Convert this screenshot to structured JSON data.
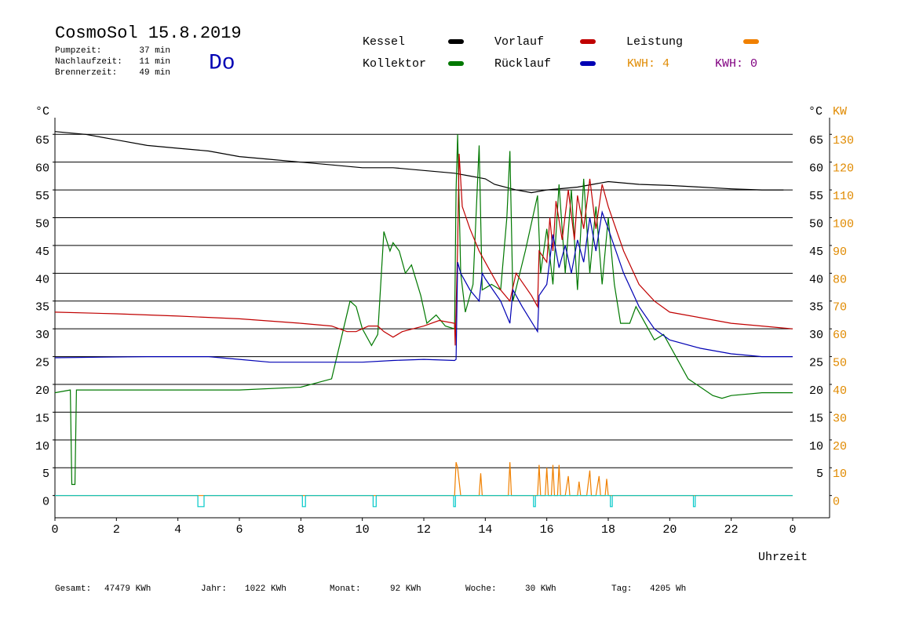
{
  "chart_data": {
    "type": "line",
    "title": "CosmoSol 15.8.2019",
    "weekday": "Do",
    "info": [
      {
        "label": "Pumpzeit:",
        "value": "37 min"
      },
      {
        "label": "Nachlaufzeit:",
        "value": "11 min"
      },
      {
        "label": "Brennerzeit:",
        "value": "49 min"
      }
    ],
    "energy_labels": [
      {
        "text": "KWH: 4",
        "color": "#e08a00"
      },
      {
        "text": "KWH: 0",
        "color": "#800080"
      }
    ],
    "y_label": "°C",
    "y_right_label": "°C",
    "y2_label": "KW",
    "x_label": "Uhrzeit",
    "xlim": [
      0,
      25.2
    ],
    "xticks": [
      0,
      2,
      4,
      6,
      8,
      10,
      12,
      14,
      16,
      18,
      20,
      22,
      {
        "value": 24,
        "label": "0"
      }
    ],
    "ylim": [
      -4,
      68
    ],
    "yticks": [
      0,
      5,
      10,
      15,
      20,
      25,
      30,
      35,
      40,
      45,
      50,
      55,
      60,
      65
    ],
    "yticks_right": [
      5,
      10,
      15,
      20,
      25,
      30,
      35,
      40,
      45,
      50,
      55,
      60,
      65
    ],
    "y2lim": [
      -8,
      136
    ],
    "y2ticks": [
      0,
      10,
      20,
      30,
      40,
      50,
      60,
      70,
      80,
      90,
      100,
      110,
      120,
      130
    ],
    "grid": true,
    "series": [
      {
        "name": "Kessel",
        "color": "#000000",
        "x": [
          0,
          1,
          2,
          3,
          4,
          5,
          6,
          7,
          8,
          9,
          10,
          11,
          12,
          13,
          13.5,
          14,
          14.3,
          15,
          15.5,
          16,
          17,
          17.5,
          18,
          19,
          20,
          21,
          22,
          23,
          23.7
        ],
        "values": [
          65.5,
          65,
          64,
          63,
          62.5,
          62,
          61,
          60.5,
          60,
          59.5,
          59,
          59,
          58.5,
          58,
          57.5,
          57,
          56,
          55,
          54.5,
          55,
          55.5,
          56,
          56.5,
          56,
          55.8,
          55.5,
          55.2,
          55,
          55
        ]
      },
      {
        "name": "Kollektor",
        "color": "#007800",
        "x": [
          0,
          0.5,
          0.55,
          0.65,
          0.7,
          2,
          4,
          6,
          8,
          9,
          9.3,
          9.6,
          9.8,
          10,
          10.3,
          10.5,
          10.7,
          10.9,
          11,
          11.2,
          11.4,
          11.6,
          11.9,
          12.1,
          12.4,
          12.7,
          13,
          13.05,
          13.1,
          13.2,
          13.35,
          13.6,
          13.8,
          13.9,
          14.2,
          14.5,
          14.7,
          14.8,
          14.9,
          15.3,
          15.5,
          15.7,
          15.8,
          16,
          16.2,
          16.4,
          16.6,
          16.8,
          17,
          17.2,
          17.4,
          17.6,
          17.8,
          18,
          18.2,
          18.4,
          18.7,
          18.9,
          19.2,
          19.5,
          19.8,
          20.2,
          20.6,
          21,
          21.4,
          21.7,
          22,
          23,
          24
        ],
        "values": [
          18.5,
          19,
          2,
          2,
          19,
          19,
          19,
          19,
          19.5,
          21,
          28,
          35,
          34,
          30,
          27,
          29,
          47.5,
          44,
          45.5,
          44,
          40,
          41.5,
          36,
          31,
          32.5,
          30.5,
          30,
          55,
          65,
          40,
          33,
          38,
          63,
          37,
          38,
          37,
          50,
          62,
          35,
          44,
          49,
          54,
          40,
          48,
          38,
          56,
          40,
          55,
          37,
          57,
          40,
          52,
          38,
          50,
          38,
          31,
          31,
          34,
          31,
          28,
          29,
          25,
          21,
          19.5,
          18,
          17.5,
          18,
          18.5,
          18.5
        ]
      },
      {
        "name": "Vorlauf",
        "color": "#c00000",
        "x": [
          0,
          2,
          4,
          6,
          8,
          9,
          9.5,
          9.8,
          10.2,
          10.5,
          10.7,
          11,
          11.3,
          12,
          12.5,
          13,
          13.02,
          13.1,
          13.15,
          13.25,
          13.5,
          13.8,
          14,
          14.5,
          14.8,
          15,
          15.5,
          15.7,
          15.75,
          16,
          16.1,
          16.2,
          16.3,
          16.5,
          16.7,
          16.9,
          17,
          17.2,
          17.4,
          17.6,
          17.8,
          18,
          18.5,
          19,
          19.5,
          20,
          21,
          22,
          23,
          24
        ],
        "values": [
          33,
          32.7,
          32.3,
          31.8,
          31,
          30.5,
          29.5,
          29.5,
          30.5,
          30.5,
          29.5,
          28.5,
          29.5,
          30.5,
          31.5,
          31,
          27,
          45,
          61.5,
          52,
          48,
          44,
          42,
          37,
          35,
          40,
          36,
          34,
          44,
          42,
          50,
          44,
          53,
          46,
          55,
          46,
          54,
          48,
          57,
          48,
          56,
          52,
          44,
          38,
          35,
          33,
          32,
          31,
          30.5,
          30
        ]
      },
      {
        "name": "Rücklauf",
        "color": "#0000b4",
        "x": [
          0,
          3,
          5,
          6,
          7,
          9,
          10,
          11,
          12,
          13,
          13.05,
          13.1,
          13.2,
          13.5,
          13.8,
          13.9,
          14,
          14.5,
          14.8,
          14.9,
          15.2,
          15.7,
          15.75,
          16,
          16.2,
          16.4,
          16.6,
          16.8,
          17,
          17.2,
          17.4,
          17.6,
          17.8,
          18,
          18.5,
          19,
          19.5,
          20,
          21,
          22,
          23,
          24
        ],
        "values": [
          24.8,
          25,
          25,
          24.5,
          24,
          24,
          24,
          24.3,
          24.5,
          24.3,
          24.5,
          42,
          40,
          37,
          35,
          40,
          39,
          35,
          31,
          37,
          34,
          29.5,
          36,
          38,
          47,
          41,
          45,
          40,
          46,
          42,
          50,
          44,
          51,
          48,
          40,
          34,
          30,
          28,
          26.5,
          25.5,
          25,
          25
        ]
      },
      {
        "name": "Leistung",
        "color": "#f08000",
        "axis": "y2",
        "x": [
          0,
          13,
          13.05,
          13.1,
          13.2,
          13.8,
          13.85,
          13.9,
          14.75,
          14.8,
          14.85,
          15.7,
          15.75,
          15.8,
          15.95,
          16,
          16.05,
          16.15,
          16.2,
          16.25,
          16.35,
          16.4,
          16.45,
          16.6,
          16.7,
          16.75,
          17,
          17.05,
          17.1,
          17.3,
          17.4,
          17.45,
          17.6,
          17.7,
          17.75,
          17.9,
          17.95,
          18,
          24
        ],
        "values": [
          0,
          0,
          12,
          10,
          0,
          0,
          8,
          0,
          0,
          12,
          0,
          0,
          11,
          0,
          0,
          10,
          0,
          0,
          11,
          0,
          0,
          11,
          0,
          0,
          7,
          0,
          0,
          5,
          0,
          0,
          9,
          0,
          0,
          7,
          0,
          0,
          6,
          0,
          0
        ]
      },
      {
        "color": "#00c8c8",
        "x": [
          0,
          4.65,
          4.65,
          4.85,
          4.85,
          8.05,
          8.05,
          8.15,
          8.15,
          10.35,
          10.35,
          10.45,
          10.45,
          12.97,
          12.97,
          13.03,
          13.03,
          15.57,
          15.57,
          15.63,
          15.63,
          18.07,
          18.07,
          18.13,
          18.13,
          20.77,
          20.77,
          20.83,
          20.83,
          24
        ],
        "values": [
          0,
          0,
          -2,
          -2,
          0,
          0,
          -2,
          -2,
          0,
          0,
          -2,
          -2,
          0,
          0,
          -2,
          -2,
          0,
          0,
          -2,
          -2,
          0,
          0,
          -2,
          -2,
          0,
          0,
          -2,
          -2,
          0,
          0
        ]
      }
    ],
    "totals": [
      {
        "label": "Gesamt:",
        "value": "47479 KWh"
      },
      {
        "label": "Jahr:",
        "value": "1022 KWh"
      },
      {
        "label": "Monat:",
        "value": "92 KWh"
      },
      {
        "label": "Woche:",
        "value": "30 KWh"
      },
      {
        "label": "Tag:",
        "value": "4205 Wh"
      }
    ]
  }
}
